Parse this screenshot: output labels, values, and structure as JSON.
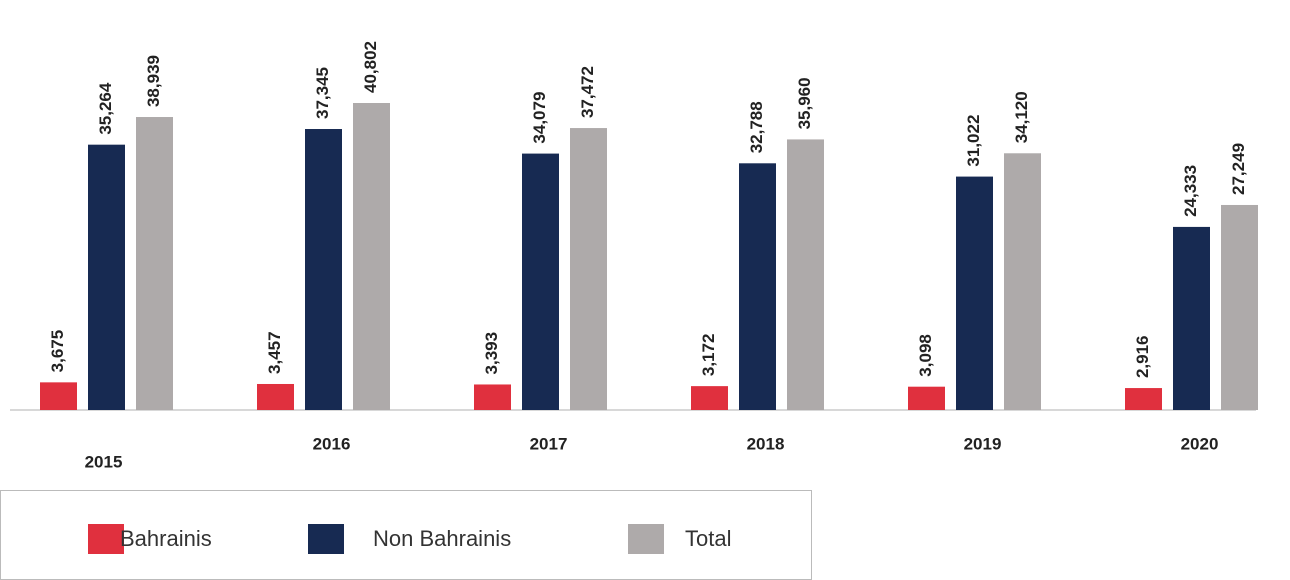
{
  "chart_data": {
    "type": "bar",
    "categories": [
      "2015",
      "2016",
      "2017",
      "2018",
      "2019",
      "2020"
    ],
    "series": [
      {
        "name": "Bahrainis",
        "color": "#e0303e",
        "values": [
          3675,
          3457,
          3393,
          3172,
          3098,
          2916
        ],
        "value_labels": [
          "3,675",
          "3,457",
          "3,393",
          "3,172",
          "3,098",
          "2,916"
        ]
      },
      {
        "name": "Non Bahrainis",
        "color": "#172a52",
        "values": [
          35264,
          37345,
          34079,
          32788,
          31022,
          24333
        ],
        "value_labels": [
          "35,264",
          "37,345",
          "34,079",
          "32,788",
          "31,022",
          "24,333"
        ]
      },
      {
        "name": "Total",
        "color": "#aeaaaa",
        "values": [
          38939,
          40802,
          37472,
          35960,
          34120,
          27249
        ],
        "value_labels": [
          "38,939",
          "40,802",
          "37,472",
          "35,960",
          "34,120",
          "27,249"
        ]
      }
    ],
    "legend": "bottom-left"
  }
}
